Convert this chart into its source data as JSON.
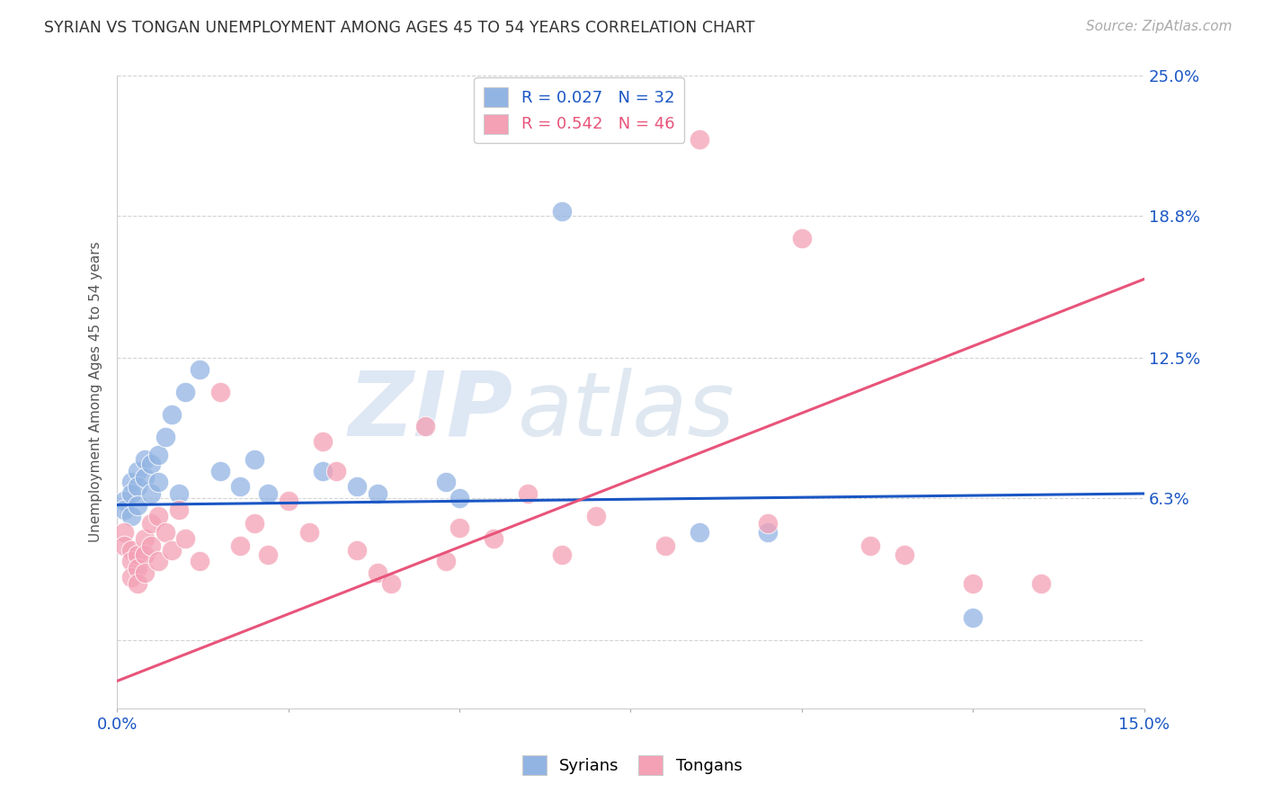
{
  "title": "SYRIAN VS TONGAN UNEMPLOYMENT AMONG AGES 45 TO 54 YEARS CORRELATION CHART",
  "source": "Source: ZipAtlas.com",
  "ylabel_label": "Unemployment Among Ages 45 to 54 years",
  "legend_syrian": "R = 0.027   N = 32",
  "legend_tongan": "R = 0.542   N = 46",
  "legend_label_syrian": "Syrians",
  "legend_label_tongan": "Tongans",
  "syrian_color": "#92b4e3",
  "tongan_color": "#f4a0b5",
  "trendline_syrian_color": "#1a56c4",
  "trendline_tongan_color": "#e8547a",
  "watermark_zip": "ZIP",
  "watermark_atlas": "atlas",
  "xlim": [
    0.0,
    0.15
  ],
  "ylim": [
    -0.03,
    0.25
  ],
  "background_color": "#ffffff",
  "grid_color": "#cccccc",
  "syrian_x": [
    0.001,
    0.001,
    0.002,
    0.002,
    0.002,
    0.003,
    0.003,
    0.003,
    0.004,
    0.004,
    0.005,
    0.005,
    0.006,
    0.006,
    0.007,
    0.008,
    0.009,
    0.01,
    0.012,
    0.015,
    0.018,
    0.02,
    0.022,
    0.03,
    0.035,
    0.038,
    0.048,
    0.05,
    0.065,
    0.085,
    0.095,
    0.125
  ],
  "syrian_y": [
    0.062,
    0.058,
    0.07,
    0.065,
    0.055,
    0.075,
    0.068,
    0.06,
    0.08,
    0.072,
    0.078,
    0.065,
    0.082,
    0.07,
    0.09,
    0.1,
    0.065,
    0.11,
    0.12,
    0.075,
    0.068,
    0.08,
    0.065,
    0.075,
    0.068,
    0.065,
    0.07,
    0.063,
    0.19,
    0.048,
    0.048,
    0.01
  ],
  "tongan_x": [
    0.001,
    0.001,
    0.002,
    0.002,
    0.002,
    0.003,
    0.003,
    0.003,
    0.004,
    0.004,
    0.004,
    0.005,
    0.005,
    0.006,
    0.006,
    0.007,
    0.008,
    0.009,
    0.01,
    0.012,
    0.015,
    0.018,
    0.02,
    0.022,
    0.025,
    0.028,
    0.03,
    0.032,
    0.035,
    0.038,
    0.04,
    0.045,
    0.048,
    0.05,
    0.055,
    0.06,
    0.065,
    0.07,
    0.08,
    0.085,
    0.095,
    0.1,
    0.11,
    0.115,
    0.125,
    0.135
  ],
  "tongan_y": [
    0.048,
    0.042,
    0.04,
    0.035,
    0.028,
    0.038,
    0.032,
    0.025,
    0.045,
    0.038,
    0.03,
    0.052,
    0.042,
    0.055,
    0.035,
    0.048,
    0.04,
    0.058,
    0.045,
    0.035,
    0.11,
    0.042,
    0.052,
    0.038,
    0.062,
    0.048,
    0.088,
    0.075,
    0.04,
    0.03,
    0.025,
    0.095,
    0.035,
    0.05,
    0.045,
    0.065,
    0.038,
    0.055,
    0.042,
    0.222,
    0.052,
    0.178,
    0.042,
    0.038,
    0.025,
    0.025
  ],
  "ytick_vals": [
    0.0,
    0.063,
    0.125,
    0.188,
    0.25
  ],
  "ytick_labels": [
    "",
    "6.3%",
    "12.5%",
    "18.8%",
    "25.0%"
  ],
  "xtick_vals": [
    0.0,
    0.025,
    0.05,
    0.075,
    0.1,
    0.125,
    0.15
  ],
  "xtick_labels": [
    "0.0%",
    "",
    "",
    "",
    "",
    "",
    "15.0%"
  ]
}
